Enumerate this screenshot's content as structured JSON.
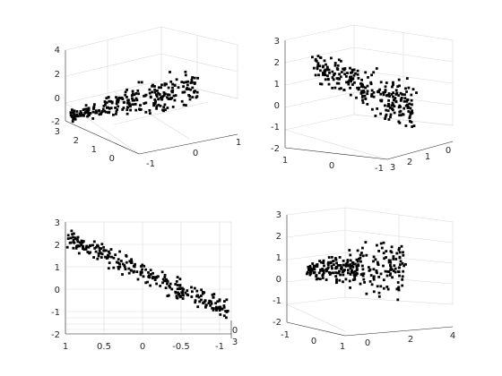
{
  "figure": {
    "background": "#ffffff",
    "marker_color": "#000000",
    "grid_color": "#d9d9d9",
    "axis_color": "#262626"
  },
  "chart_data": [
    {
      "type": "scatter",
      "subtype": "3d",
      "view": "default-3d",
      "grid": true,
      "xlim": [
        -1,
        1
      ],
      "ylim": [
        -1,
        3
      ],
      "zlim": [
        -2,
        4
      ],
      "x_ticks": [
        "-1",
        "0",
        "1"
      ],
      "y_ticks": [
        "0",
        "1",
        "2",
        "3"
      ],
      "z_ticks": [
        "-2",
        "0",
        "2",
        "4"
      ],
      "title": "",
      "xlabel": "",
      "ylabel": "",
      "zlabel": "",
      "point_count": 260
    },
    {
      "type": "scatter",
      "subtype": "3d",
      "view": "rotated-3d",
      "grid": true,
      "xlim": [
        -1,
        1
      ],
      "ylim": [
        -1,
        3
      ],
      "zlim": [
        -2,
        3
      ],
      "x_ticks": [
        "1",
        "0",
        "-1"
      ],
      "y_ticks": [
        "3",
        "2",
        "1",
        "0"
      ],
      "z_ticks": [
        "-2",
        "-1",
        "0",
        "1",
        "2",
        "3"
      ],
      "title": "",
      "xlabel": "",
      "ylabel": "",
      "zlabel": "",
      "point_count": 260
    },
    {
      "type": "scatter",
      "subtype": "3d",
      "view": "side-x-z",
      "grid": true,
      "xlim": [
        -1,
        1
      ],
      "ylim": [
        -1,
        3
      ],
      "zlim": [
        -2,
        3
      ],
      "x_ticks": [
        "1",
        "0.5",
        "0",
        "-0.5",
        "-1"
      ],
      "z_ticks": [
        "-2",
        "-1",
        "0",
        "1",
        "2",
        "3"
      ],
      "edge_ticks": [
        "0",
        "3"
      ],
      "title": "",
      "xlabel": "",
      "ylabel": "",
      "zlabel": "",
      "point_count": 260
    },
    {
      "type": "scatter",
      "subtype": "3d",
      "view": "rotated-3d",
      "grid": true,
      "xlim": [
        -1,
        1
      ],
      "ylim": [
        -1,
        4
      ],
      "zlim": [
        -2,
        3
      ],
      "x_ticks": [
        "-1",
        "0",
        "1"
      ],
      "y_ticks": [
        "0",
        "2",
        "4"
      ],
      "z_ticks": [
        "-2",
        "-1",
        "0",
        "1",
        "2",
        "3"
      ],
      "title": "",
      "xlabel": "",
      "ylabel": "",
      "zlabel": "",
      "point_count": 260
    }
  ]
}
